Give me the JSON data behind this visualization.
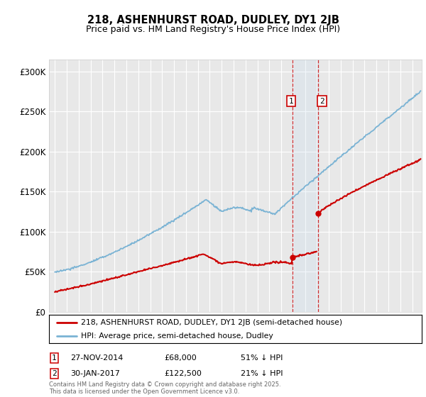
{
  "title": "218, ASHENHURST ROAD, DUDLEY, DY1 2JB",
  "subtitle": "Price paid vs. HM Land Registry's House Price Index (HPI)",
  "ylabel_ticks": [
    "£0",
    "£50K",
    "£100K",
    "£150K",
    "£200K",
    "£250K",
    "£300K"
  ],
  "ytick_values": [
    0,
    50000,
    100000,
    150000,
    200000,
    250000,
    300000
  ],
  "ylim": [
    0,
    315000
  ],
  "xlim_start": 1994.5,
  "xlim_end": 2025.8,
  "hpi_color": "#7ab3d4",
  "price_color": "#cc0000",
  "sale1_date": 2014.92,
  "sale1_price": 68000,
  "sale2_date": 2017.08,
  "sale2_price": 122500,
  "legend_line1": "218, ASHENHURST ROAD, DUDLEY, DY1 2JB (semi-detached house)",
  "legend_line2": "HPI: Average price, semi-detached house, Dudley",
  "footer": "Contains HM Land Registry data © Crown copyright and database right 2025.\nThis data is licensed under the Open Government Licence v3.0.",
  "bg_color": "#e8e8e8"
}
